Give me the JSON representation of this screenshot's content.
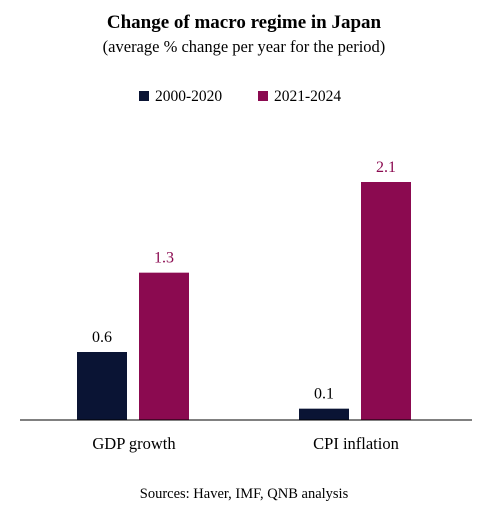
{
  "chart_data": {
    "type": "bar",
    "title": "Change of macro regime in Japan",
    "subtitle": "(average % change per year for the period)",
    "categories": [
      "GDP growth",
      "CPI inflation"
    ],
    "series": [
      {
        "name": "2000-2020",
        "color": "#0a1434",
        "values": [
          0.6,
          0.1
        ],
        "labels": [
          "0.6",
          "0.1"
        ]
      },
      {
        "name": "2021-2024",
        "color": "#8b0a50",
        "values": [
          1.3,
          2.1
        ],
        "labels": [
          "1.3",
          "2.1"
        ]
      }
    ],
    "value_label_colors": [
      "#000000",
      "#8b0a50"
    ],
    "ylim": [
      0,
      2.1
    ],
    "legend_position": "top",
    "grid": false,
    "source": "Sources: Haver, IMF, QNB analysis"
  }
}
